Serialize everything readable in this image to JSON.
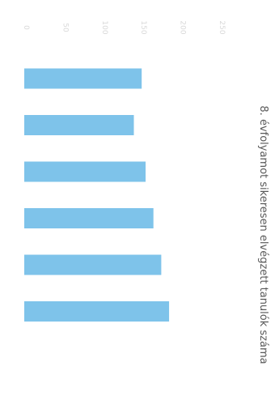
{
  "chart_data": {
    "type": "bar",
    "orientation": "horizontal",
    "title": "8. évfolyamot sikeresen elvégzett tanulók száma",
    "categories": [
      "",
      "",
      "",
      "",
      "",
      ""
    ],
    "values": [
      150,
      140,
      155,
      165,
      175,
      185
    ],
    "xlim": [
      0,
      250
    ],
    "xticks": [
      0,
      50,
      100,
      150,
      200,
      250
    ],
    "bar_color": "#7ec3ea",
    "grid": false,
    "legend": "none"
  }
}
